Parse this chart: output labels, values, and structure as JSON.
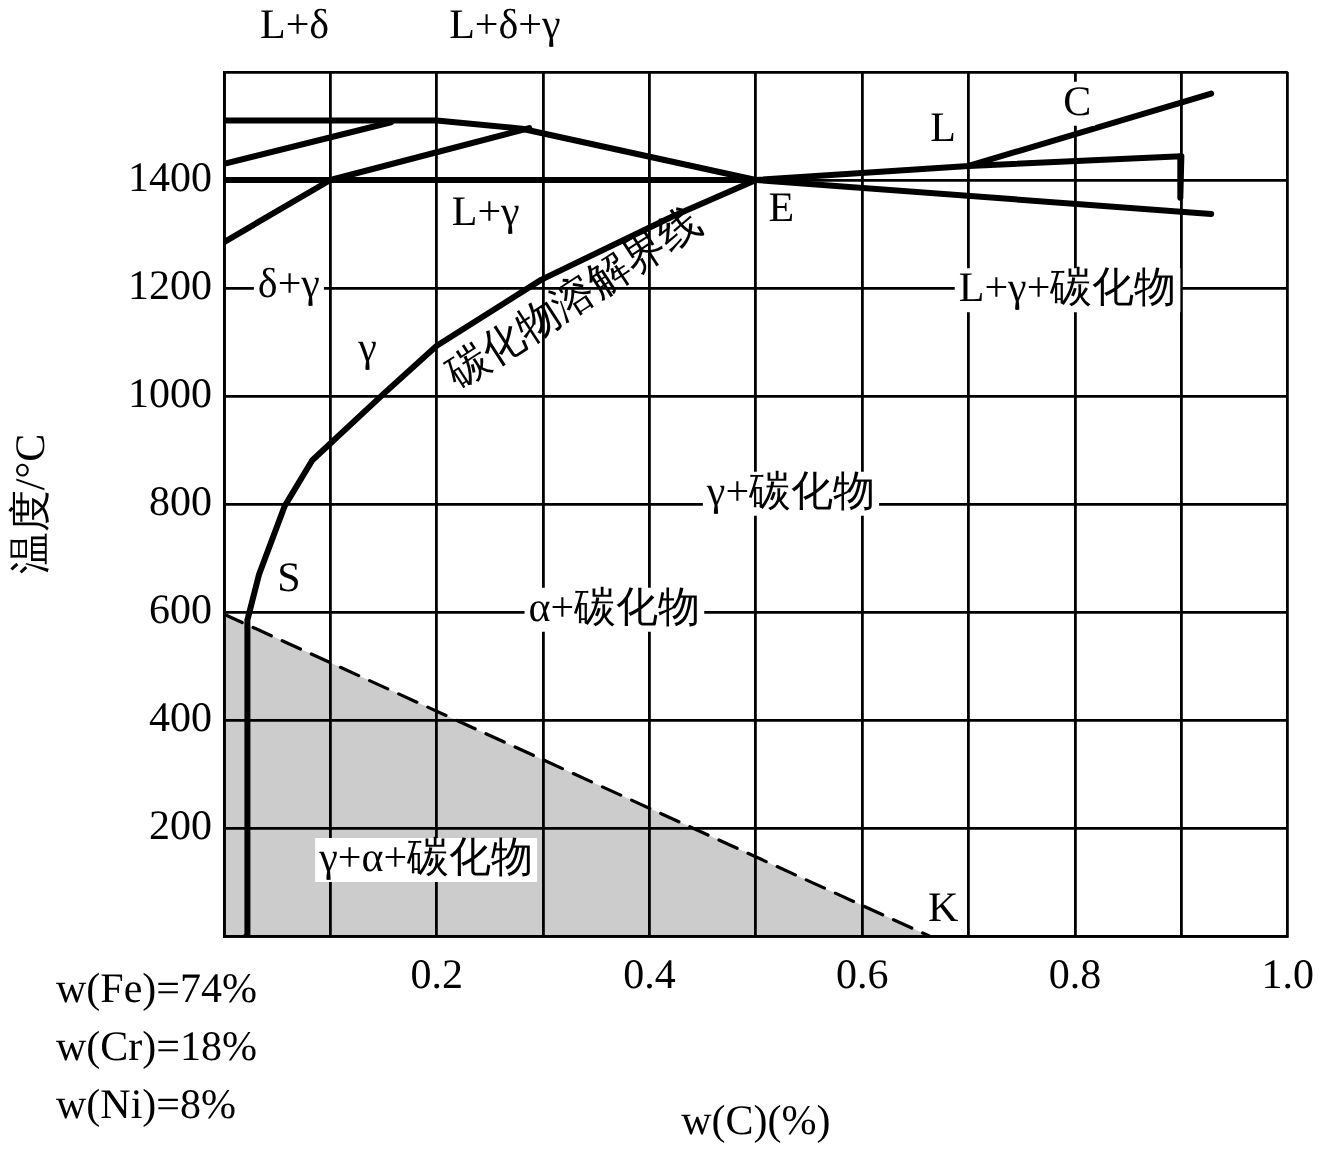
{
  "chart_data": {
    "type": "line",
    "xlabel": "w(C)(%)",
    "ylabel": "温度/°C",
    "xlim": [
      0,
      1.0
    ],
    "ylim": [
      0,
      1600
    ],
    "xticks": [
      {
        "value": 0,
        "label": null
      },
      {
        "value": 0.1,
        "label": null
      },
      0.2,
      {
        "value": 0.3,
        "label": null
      },
      0.4,
      {
        "value": 0.5,
        "label": null
      },
      0.6,
      {
        "value": 0.7,
        "label": null
      },
      0.8,
      {
        "value": 0.9,
        "label": null
      },
      {
        "value": 1.0,
        "label": "1.0"
      }
    ],
    "yticks": [
      {
        "value": 0,
        "label": null
      },
      200,
      400,
      600,
      800,
      1000,
      1200,
      1400,
      {
        "value": 1600,
        "label": null
      }
    ],
    "grid": true,
    "legend": false,
    "marker": "none",
    "series": [
      {
        "type": "line",
        "color": "#000000",
        "x": [
          0,
          0.2,
          0.28,
          0.5,
          0.928
        ],
        "values": [
          1510,
          1510,
          1495,
          1400,
          1337
        ]
      },
      {
        "type": "line",
        "color": "#000000",
        "x": [
          0,
          0.157
        ],
        "values": [
          1430,
          1507
        ]
      },
      {
        "type": "line",
        "color": "#000000",
        "x": [
          0,
          0.1,
          0.287
        ],
        "values": [
          1285,
          1400,
          1496
        ]
      },
      {
        "type": "line",
        "color": "#000000",
        "x": [
          0,
          0.5,
          0.7,
          0.928
        ],
        "values": [
          1400,
          1400,
          1426,
          1560
        ]
      },
      {
        "type": "line",
        "color": "#000000",
        "x": [
          0.021,
          0.022,
          0.033,
          0.057,
          0.083,
          0.15,
          0.2,
          0.298,
          0.422,
          0.5
        ],
        "values": [
          0,
          585,
          670,
          796,
          881,
          1004,
          1093,
          1215,
          1333,
          1400
        ]
      },
      {
        "type": "line",
        "color": "#000000",
        "x": [
          0.7,
          0.9,
          0.899
        ],
        "values": [
          1426,
          1444,
          1367
        ]
      },
      {
        "type": "area",
        "color": "#000000",
        "line_style": "dashed",
        "x": [
          0,
          0.663
        ],
        "values": [
          596,
          0
        ]
      }
    ],
    "annotations": [
      "L+δ",
      "L+δ+γ",
      "w(Fe)=74%",
      "w(Cr)=18%",
      "w(Ni)=8%",
      "碳化物溶解界线",
      "L+γ+碳化物",
      "γ+碳化物",
      "α+碳化物",
      "γ+α+碳化物",
      {
        "text": "δ+γ",
        "x": 0.061,
        "y": 1204
      },
      {
        "text": "L+γ",
        "x": 0.246,
        "y": 1337
      },
      {
        "text": "γ",
        "x": 0.135,
        "y": 1085
      },
      {
        "text": "E",
        "x": 0.524,
        "y": 1344
      },
      {
        "text": "S",
        "x": 0.061,
        "y": 659
      },
      {
        "text": "K",
        "x": 0.676,
        "y": 48
      },
      {
        "text": "L",
        "x": 0.676,
        "y": 1493
      },
      {
        "text": "C",
        "x": 0.802,
        "y": 1541
      }
    ]
  }
}
